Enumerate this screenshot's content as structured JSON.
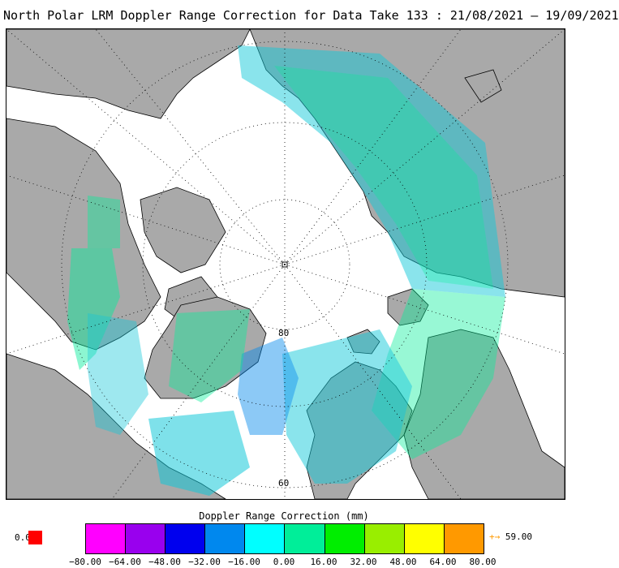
{
  "title": "North Polar LRM Doppler Range Correction for Data Take 133 : 21/08/2021 — 19/09/2021",
  "map": {
    "projection": "north polar stereographic",
    "pole_marker": "·",
    "latitude_labels": [
      "80",
      "60"
    ],
    "land_color": "#a9a9a9",
    "ocean_color": "#ffffff"
  },
  "legend": {
    "title": "Doppler Range Correction (mm)",
    "reference_value": "0.0",
    "reference_color": "#ff0000",
    "colors": [
      "#ff00ff",
      "#9900ee",
      "#0000ee",
      "#0088ee",
      "#00ffff",
      "#00ee99",
      "#00ee00",
      "#99ee00",
      "#ffff00",
      "#ff9900"
    ],
    "ticks": [
      "−80.00",
      "−64.00",
      "−48.00",
      "−32.00",
      "−16.00",
      "0.00",
      "16.00",
      "32.00",
      "48.00",
      "64.00",
      "80.00"
    ],
    "overflow_arrow": "+→",
    "overflow_value": "59.00",
    "overflow_color": "#ff9900"
  }
}
